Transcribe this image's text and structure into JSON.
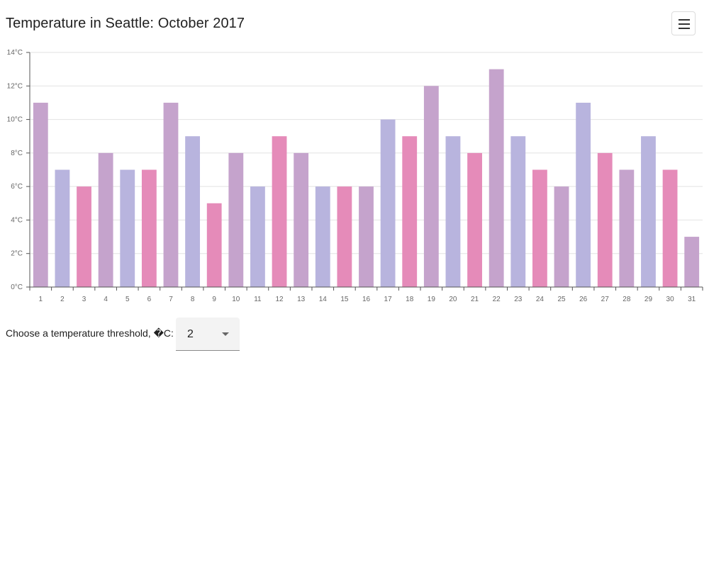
{
  "title": "Temperature in Seattle: October 2017",
  "menu": {
    "icon": "hamburger-menu-icon"
  },
  "controls": {
    "threshold_label": "Choose a temperature threshold, �C:",
    "threshold_value": "2",
    "dropdown_icon": "chevron-down-icon"
  },
  "chart_data": {
    "type": "bar",
    "categories": [
      "1",
      "2",
      "3",
      "4",
      "5",
      "6",
      "7",
      "8",
      "9",
      "10",
      "11",
      "12",
      "13",
      "14",
      "15",
      "16",
      "17",
      "18",
      "19",
      "20",
      "21",
      "22",
      "23",
      "24",
      "25",
      "26",
      "27",
      "28",
      "29",
      "30",
      "31"
    ],
    "values": [
      11,
      7,
      6,
      8,
      7,
      7,
      11,
      9,
      5,
      8,
      6,
      9,
      8,
      6,
      6,
      6,
      10,
      9,
      12,
      9,
      8,
      13,
      9,
      7,
      6,
      11,
      8,
      7,
      9,
      7,
      3
    ],
    "ylim": [
      0,
      14
    ],
    "yticks": [
      0,
      2,
      4,
      6,
      8,
      10,
      12,
      14
    ],
    "ytick_suffix": "°C",
    "grid": true,
    "palette": [
      "#c5a3cc",
      "#b8b4de",
      "#e58bb9"
    ],
    "grid_color": "#e2e2e2",
    "axis_color": "#555555"
  }
}
